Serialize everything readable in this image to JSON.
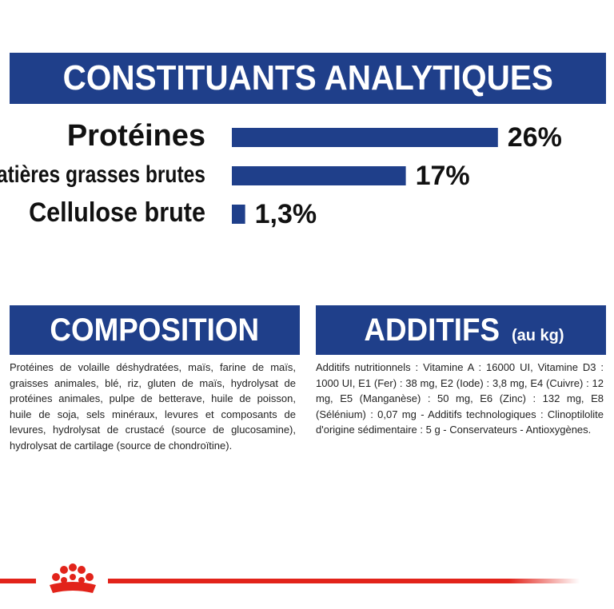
{
  "chart_data": {
    "type": "bar",
    "orientation": "horizontal",
    "title": "CONSTITUANTS ANALYTIQUES",
    "categories": [
      "Protéines",
      "Matières grasses brutes",
      "Cellulose brute"
    ],
    "values": [
      26,
      17,
      1.3
    ],
    "value_labels": [
      "26%",
      "17%",
      "1,3%"
    ],
    "color": "#1f3f8a"
  },
  "composition": {
    "title": "COMPOSITION",
    "text": "Protéines de volaille déshydratées, maïs, farine de maïs, graisses animales, blé, riz, gluten de maïs, hydrolysat de protéines animales, pulpe de betterave, huile de poisson, huile de soja, sels minéraux, levures et composants de levures, hydrolysat de crustacé (source de glucosamine), hydrolysat de cartilage (source de chondroïtine)."
  },
  "additifs": {
    "title": "ADDITIFS",
    "unit": "(au kg)",
    "text": "Additifs nutritionnels : Vitamine A : 16000 UI, Vitamine D3 : 1000 UI, E1 (Fer) : 38 mg, E2 (Iode) : 3,8 mg, E4 (Cuivre) : 12 mg, E5 (Manganèse) : 50 mg, E6 (Zinc) : 132 mg, E8 (Sélénium) : 0,07 mg - Additifs technologiques : Clinoptilolite d'origine sédimentaire : 5 g - Conservateurs - Antioxygènes."
  }
}
